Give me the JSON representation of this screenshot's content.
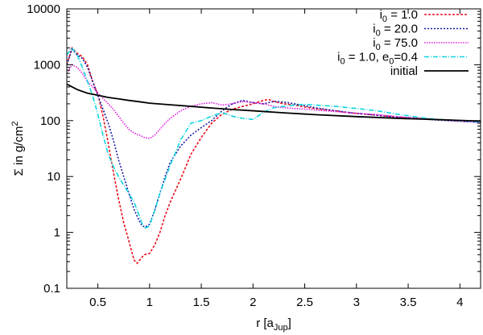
{
  "chart_data": {
    "type": "line",
    "title": "",
    "xlabel": {
      "main": "r [a",
      "sub": "Jup",
      "close": "]"
    },
    "ylabel": {
      "main": "Σ in g/cm",
      "sup": "2"
    },
    "xlim": [
      0.2,
      4.2
    ],
    "ylim": [
      0.1,
      10000
    ],
    "yscale": "log",
    "grid": false,
    "legend_position": "top-right",
    "x_ticks": [
      0.5,
      1,
      1.5,
      2,
      2.5,
      3,
      3.5,
      4
    ],
    "x_tick_labels": [
      "0.5",
      "1",
      "1.5",
      "2",
      "2.5",
      "3",
      "3.5",
      "4"
    ],
    "y_ticks": [
      0.1,
      1,
      10,
      100,
      1000,
      10000
    ],
    "y_tick_labels": [
      "0.1",
      "1",
      "10",
      "100",
      "1000",
      "10000"
    ],
    "series": [
      {
        "name": "i_0 = 1.0",
        "legend": {
          "main": "i",
          "sub": "0",
          "rest": " = 1.0"
        },
        "color": "#e8101a",
        "dash": "3,2",
        "x": [
          0.2,
          0.25,
          0.3,
          0.35,
          0.4,
          0.45,
          0.5,
          0.55,
          0.6,
          0.65,
          0.7,
          0.75,
          0.8,
          0.85,
          0.88,
          0.92,
          0.95,
          1.0,
          1.05,
          1.1,
          1.15,
          1.2,
          1.3,
          1.4,
          1.5,
          1.6,
          1.7,
          1.8,
          1.9,
          2.0,
          2.1,
          2.15,
          2.2,
          2.3,
          2.4,
          2.5,
          2.6,
          2.7,
          2.8,
          2.9,
          3.0,
          3.2,
          3.4,
          3.6,
          3.8,
          4.0,
          4.2
        ],
        "y": [
          1000,
          2000,
          1600,
          1400,
          1000,
          500,
          300,
          120,
          40,
          12,
          4,
          1.5,
          0.7,
          0.32,
          0.28,
          0.35,
          0.4,
          0.42,
          0.6,
          1.0,
          2.0,
          3.5,
          9,
          25,
          50,
          90,
          130,
          160,
          180,
          200,
          230,
          240,
          220,
          200,
          190,
          175,
          165,
          155,
          150,
          140,
          135,
          125,
          115,
          110,
          105,
          100,
          95
        ]
      },
      {
        "name": "i_0 = 20.0",
        "legend": {
          "main": "i",
          "sub": "0",
          "rest": " = 20.0"
        },
        "color": "#1a1aa8",
        "dash": "2,2",
        "x": [
          0.2,
          0.25,
          0.3,
          0.35,
          0.4,
          0.45,
          0.5,
          0.55,
          0.6,
          0.65,
          0.7,
          0.75,
          0.8,
          0.85,
          0.9,
          0.93,
          0.96,
          1.0,
          1.05,
          1.1,
          1.15,
          1.2,
          1.3,
          1.4,
          1.5,
          1.6,
          1.7,
          1.8,
          1.9,
          2.0,
          2.1,
          2.2,
          2.3,
          2.4,
          2.5,
          2.6,
          2.7,
          2.8,
          3.0,
          3.2,
          3.4,
          3.6,
          3.8,
          4.0,
          4.2
        ],
        "y": [
          1000,
          1900,
          1500,
          1300,
          900,
          500,
          280,
          160,
          90,
          45,
          20,
          10,
          5,
          2.6,
          1.6,
          1.3,
          1.25,
          1.4,
          2.5,
          5,
          10,
          18,
          35,
          55,
          75,
          100,
          150,
          200,
          230,
          210,
          200,
          220,
          215,
          200,
          185,
          170,
          160,
          150,
          135,
          125,
          115,
          108,
          102,
          97,
          93
        ]
      },
      {
        "name": "i_0 = 75.0",
        "legend": {
          "main": "i",
          "sub": "0",
          "rest": " = 75.0"
        },
        "color": "#e020e0",
        "dash": "1.5,1.5",
        "x": [
          0.2,
          0.25,
          0.3,
          0.35,
          0.4,
          0.45,
          0.5,
          0.55,
          0.6,
          0.65,
          0.7,
          0.75,
          0.8,
          0.85,
          0.9,
          0.95,
          1.0,
          1.05,
          1.1,
          1.15,
          1.2,
          1.3,
          1.4,
          1.5,
          1.6,
          1.7,
          1.8,
          1.9,
          2.0,
          2.1,
          2.2,
          2.3,
          2.4,
          2.5,
          2.6,
          2.8,
          3.0,
          3.2,
          3.4,
          3.6,
          3.8,
          4.0,
          4.2
        ],
        "y": [
          700,
          1000,
          900,
          700,
          500,
          400,
          310,
          250,
          200,
          160,
          120,
          90,
          70,
          60,
          55,
          50,
          48,
          55,
          70,
          90,
          110,
          150,
          180,
          200,
          210,
          190,
          200,
          220,
          210,
          200,
          180,
          170,
          165,
          160,
          155,
          145,
          135,
          128,
          118,
          110,
          104,
          98,
          93
        ]
      },
      {
        "name": "i_0 = 1.0, e_0=0.4",
        "legend": {
          "main": "i",
          "sub": "0",
          "rest": " = 1.0, e",
          "sub2": "0",
          "rest2": "=0.4"
        },
        "color": "#10d4e0",
        "dash": "6,2,1,2",
        "x": [
          0.2,
          0.25,
          0.3,
          0.35,
          0.4,
          0.45,
          0.5,
          0.55,
          0.6,
          0.65,
          0.7,
          0.75,
          0.8,
          0.85,
          0.9,
          0.93,
          0.96,
          1.0,
          1.05,
          1.1,
          1.2,
          1.3,
          1.4,
          1.5,
          1.6,
          1.7,
          1.8,
          1.9,
          2.0,
          2.1,
          2.2,
          2.3,
          2.4,
          2.5,
          2.6,
          2.7,
          2.8,
          3.0,
          3.2,
          3.4,
          3.6,
          3.8,
          4.0,
          4.2
        ],
        "y": [
          1500,
          2000,
          1500,
          900,
          500,
          280,
          130,
          55,
          25,
          15,
          10,
          7,
          5,
          3.5,
          2.0,
          1.4,
          1.2,
          1.3,
          2.5,
          5,
          16,
          45,
          90,
          100,
          120,
          140,
          120,
          110,
          105,
          140,
          170,
          180,
          190,
          195,
          190,
          185,
          180,
          165,
          150,
          130,
          115,
          105,
          100,
          95
        ]
      },
      {
        "name": "initial",
        "legend": {
          "main": "initial"
        },
        "color": "#000000",
        "dash": "",
        "x": [
          0.2,
          0.3,
          0.4,
          0.5,
          0.6,
          0.7,
          0.8,
          0.9,
          1.0,
          1.2,
          1.4,
          1.6,
          1.8,
          2.0,
          2.3,
          2.6,
          3.0,
          3.4,
          3.8,
          4.2
        ],
        "y": [
          450,
          360,
          310,
          285,
          260,
          245,
          230,
          218,
          205,
          192,
          180,
          168,
          158,
          150,
          138,
          128,
          118,
          110,
          104,
          98
        ]
      }
    ]
  }
}
